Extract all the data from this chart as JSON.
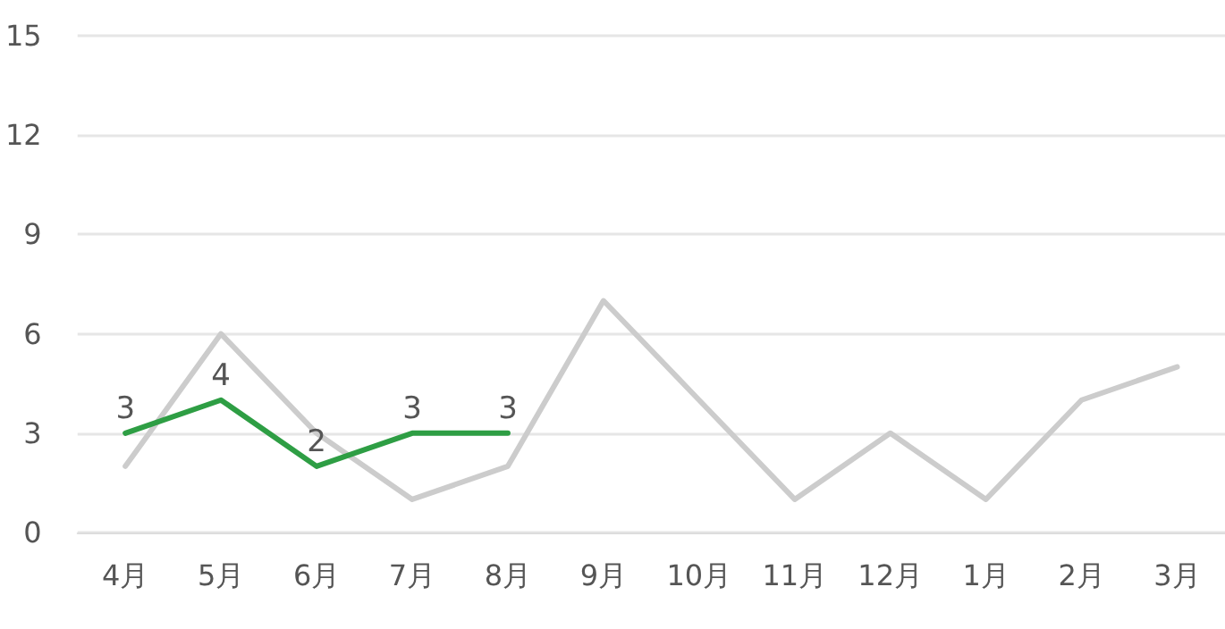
{
  "chart_data": {
    "type": "line",
    "categories": [
      "4月",
      "5月",
      "6月",
      "7月",
      "8月",
      "9月",
      "10月",
      "11月",
      "12月",
      "1月",
      "2月",
      "3月"
    ],
    "series": [
      {
        "color": "#cccccc",
        "values": [
          2,
          6,
          3,
          1,
          2,
          7,
          4,
          1,
          3,
          1,
          4,
          5
        ]
      },
      {
        "color": "#2e9e44",
        "values": [
          3,
          4,
          2,
          3,
          3,
          null,
          null,
          null,
          null,
          null,
          null,
          null
        ],
        "value_labels": [
          "3",
          "4",
          "2",
          "3",
          "3",
          null,
          null,
          null,
          null,
          null,
          null,
          null
        ]
      }
    ],
    "ylim": [
      0,
      15
    ],
    "yticks": [
      0,
      3,
      6,
      9,
      12,
      15
    ],
    "grid": "y",
    "marker": "none",
    "line_style": "solid"
  }
}
